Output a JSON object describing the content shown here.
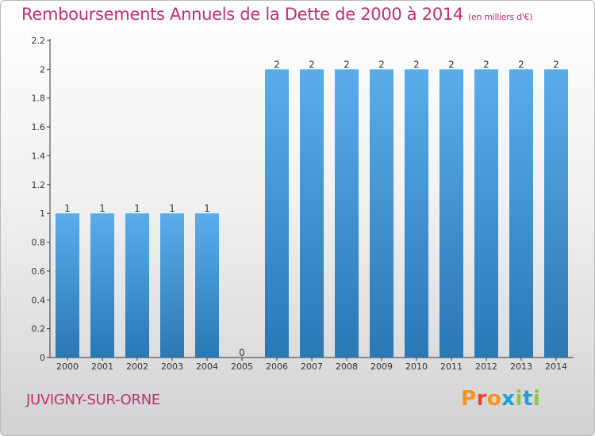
{
  "title": "Remboursements Annuels de la Dette de 2000 à 2014",
  "unit_note": "(en milliers d'€)",
  "commune": "JUVIGNY-SUR-ORNE",
  "logo": {
    "letters": [
      "P",
      "r",
      "o",
      "x",
      "i",
      "t",
      "i"
    ],
    "colors": [
      "#f7941d",
      "#e8462e",
      "#f7941d",
      "#1f9fd8",
      "#8cc63f",
      "#1f9fd8",
      "#8cc63f"
    ]
  },
  "colors": {
    "bar_top": "#5aaceb",
    "bar_bottom": "#2a78b4",
    "title": "#c0306f"
  },
  "chart_data": {
    "type": "bar",
    "title": "Remboursements Annuels de la Dette de 2000 à 2014",
    "xlabel": "",
    "ylabel": "",
    "categories": [
      "2000",
      "2001",
      "2002",
      "2003",
      "2004",
      "2005",
      "2006",
      "2007",
      "2008",
      "2009",
      "2010",
      "2011",
      "2012",
      "2013",
      "2014"
    ],
    "values": [
      1,
      1,
      1,
      1,
      1,
      0,
      2,
      2,
      2,
      2,
      2,
      2,
      2,
      2,
      2
    ],
    "data_labels": [
      "1",
      "1",
      "1",
      "1",
      "1",
      "0",
      "2",
      "2",
      "2",
      "2",
      "2",
      "2",
      "2",
      "2",
      "2"
    ],
    "ylim": [
      0,
      2.2
    ],
    "yticks": [
      0,
      0.2,
      0.4,
      0.6,
      0.8,
      1,
      1.2,
      1.4,
      1.6,
      1.8,
      2,
      2.2
    ],
    "ytick_labels": [
      "0",
      "0.2",
      "0.4",
      "0.6",
      "0.8",
      "1",
      "1.2",
      "1.4",
      "1.6",
      "1.8",
      "2",
      "2.2"
    ],
    "grid": false,
    "legend": "none"
  }
}
